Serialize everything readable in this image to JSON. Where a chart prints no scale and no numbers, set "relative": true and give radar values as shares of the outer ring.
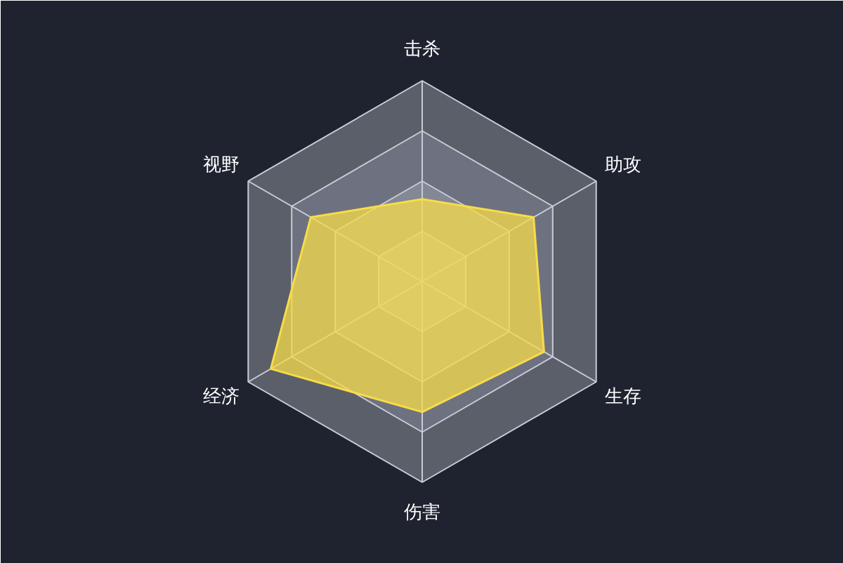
{
  "chart_data": {
    "type": "radar",
    "relative": true,
    "grid": true,
    "categories": [
      "击杀",
      "助攻",
      "生存",
      "伤害",
      "经济",
      "视野"
    ],
    "series": [
      {
        "color": "#f7dc4a",
        "values": [
          0.41,
          0.64,
          0.7,
          0.65,
          0.87,
          0.64
        ]
      }
    ]
  }
}
